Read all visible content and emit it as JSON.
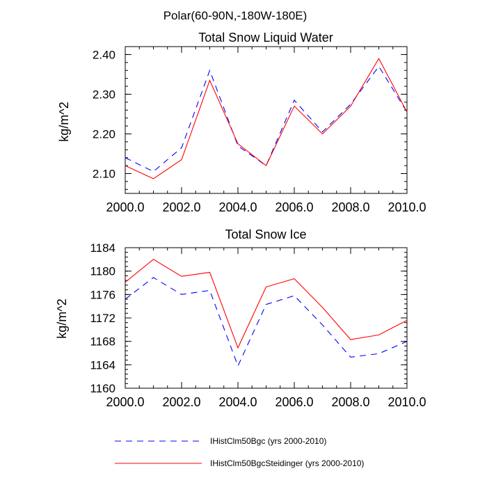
{
  "figure": {
    "suptitle": "Polar(60-90N,-180W-180E)",
    "legend": [
      {
        "label": "IHistClm50Bgc (yrs 2000-2010)",
        "color": "#0000ff",
        "dash": "dashed"
      },
      {
        "label": "IHistClm50BgcSteidinger (yrs 2000-2010)",
        "color": "#ff0000",
        "dash": "solid"
      }
    ]
  },
  "chart_data": [
    {
      "type": "line",
      "title": "Total Snow Liquid Water",
      "xlabel": "",
      "ylabel": "kg/m^2",
      "xlim": [
        2000,
        2010
      ],
      "ylim": [
        2.05,
        2.42
      ],
      "x": [
        2000,
        2001,
        2002,
        2003,
        2004,
        2005,
        2006,
        2007,
        2008,
        2009,
        2010
      ],
      "xticks": [
        "2000.0",
        "2002.0",
        "2004.0",
        "2006.0",
        "2008.0",
        "2010.0"
      ],
      "xtick_values": [
        2000,
        2002,
        2004,
        2006,
        2008,
        2010
      ],
      "yticks": [
        "2.10",
        "2.20",
        "2.30",
        "2.40"
      ],
      "ytick_values": [
        2.1,
        2.2,
        2.3,
        2.4
      ],
      "series": [
        {
          "name": "IHistClm50Bgc (yrs 2000-2010)",
          "color": "#0000ff",
          "dash": "dashed",
          "values": [
            2.14,
            2.105,
            2.165,
            2.36,
            2.17,
            2.12,
            2.285,
            2.205,
            2.275,
            2.37,
            2.255
          ]
        },
        {
          "name": "IHistClm50BgcSteidinger (yrs 2000-2010)",
          "color": "#ff0000",
          "dash": "solid",
          "values": [
            2.12,
            2.087,
            2.135,
            2.335,
            2.175,
            2.12,
            2.27,
            2.2,
            2.27,
            2.39,
            2.255
          ]
        }
      ]
    },
    {
      "type": "line",
      "title": "Total Snow Ice",
      "xlabel": "",
      "ylabel": "kg/m^2",
      "xlim": [
        2000,
        2010
      ],
      "ylim": [
        1160,
        1184
      ],
      "x": [
        2000,
        2001,
        2002,
        2003,
        2004,
        2005,
        2006,
        2007,
        2008,
        2009,
        2010
      ],
      "xticks": [
        "2000.0",
        "2002.0",
        "2004.0",
        "2006.0",
        "2008.0",
        "2010.0"
      ],
      "xtick_values": [
        2000,
        2002,
        2004,
        2006,
        2008,
        2010
      ],
      "yticks": [
        "1160",
        "1164",
        "1168",
        "1172",
        "1176",
        "1180",
        "1184"
      ],
      "ytick_values": [
        1160,
        1164,
        1168,
        1172,
        1176,
        1180,
        1184
      ],
      "series": [
        {
          "name": "IHistClm50Bgc (yrs 2000-2010)",
          "color": "#0000ff",
          "dash": "dashed",
          "values": [
            1175.2,
            1178.9,
            1176.0,
            1176.7,
            1163.8,
            1174.3,
            1175.8,
            1170.8,
            1165.3,
            1165.9,
            1168.0
          ]
        },
        {
          "name": "IHistClm50BgcSteidinger (yrs 2000-2010)",
          "color": "#ff0000",
          "dash": "solid",
          "values": [
            1178.1,
            1182.0,
            1179.1,
            1179.8,
            1166.9,
            1177.3,
            1178.7,
            1173.8,
            1168.3,
            1169.1,
            1171.6
          ]
        }
      ]
    }
  ]
}
